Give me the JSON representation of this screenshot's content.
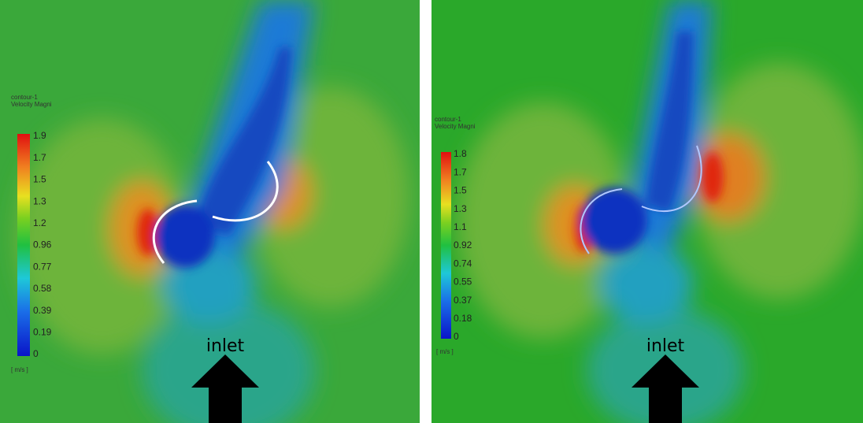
{
  "panels": [
    {
      "legend": {
        "title": "contour-1",
        "subtitle": "Velocity Magni",
        "ticks": [
          "1.9",
          "1.7",
          "1.5",
          "1.3",
          "1.2",
          "0.96",
          "0.77",
          "0.58",
          "0.39",
          "0.19",
          "0"
        ],
        "unit": "[ m/s ]"
      },
      "inlet_label": "inlet"
    },
    {
      "legend": {
        "title": "contour-1",
        "subtitle": "Velocity Magni",
        "ticks": [
          "1.8",
          "1.7",
          "1.5",
          "1.3",
          "1.1",
          "0.92",
          "0.74",
          "0.55",
          "0.37",
          "0.18",
          "0"
        ],
        "unit": "[ m/s ]"
      },
      "inlet_label": "inlet"
    }
  ]
}
